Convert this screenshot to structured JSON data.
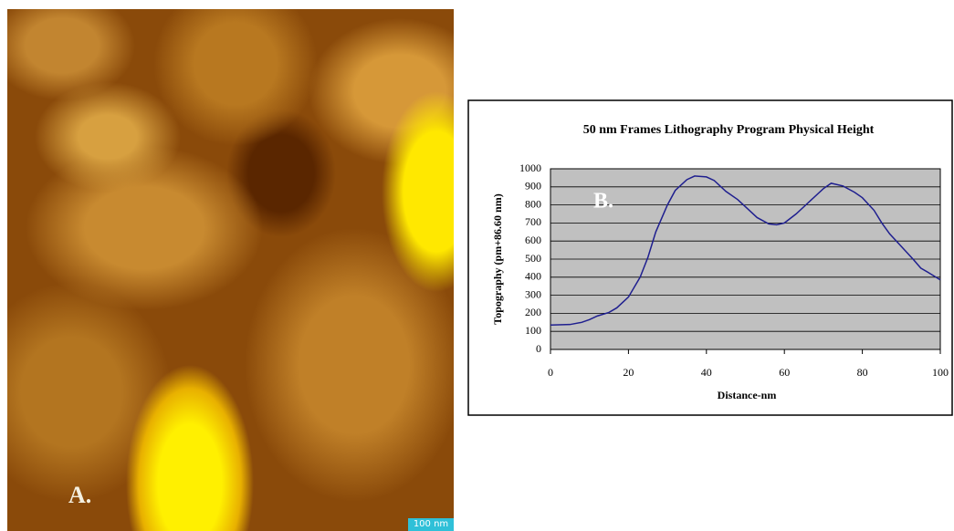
{
  "image": {
    "label": "A.",
    "scale_bar": "100 nm"
  },
  "chart_data": {
    "type": "line",
    "title": "50 nm Frames Lithography Program Physical Height",
    "x_label": "Distance-nm",
    "y_label": "Topography (pm+86.60 nm)",
    "annotations": [
      "B."
    ],
    "x": [
      0,
      5,
      8,
      10,
      12,
      15,
      17,
      20,
      23,
      25,
      27,
      30,
      32,
      35,
      37,
      40,
      42,
      45,
      48,
      50,
      53,
      56,
      58,
      60,
      63,
      66,
      70,
      72,
      75,
      78,
      80,
      83,
      85,
      87,
      90,
      93,
      95,
      97,
      100
    ],
    "series": [
      {
        "color": "#1f1f8f",
        "values": [
          135,
          138,
          150,
          165,
          185,
          205,
          230,
          290,
          400,
          510,
          650,
          800,
          880,
          940,
          960,
          955,
          935,
          875,
          830,
          790,
          730,
          695,
          690,
          700,
          750,
          810,
          890,
          920,
          905,
          870,
          840,
          770,
          700,
          640,
          570,
          500,
          450,
          425,
          385
        ]
      }
    ],
    "xlim": [
      0,
      100
    ],
    "xticks": [
      0,
      20,
      40,
      60,
      80,
      100
    ],
    "ylim": [
      0,
      1000
    ],
    "yticks": [
      0,
      100,
      200,
      300,
      400,
      500,
      600,
      700,
      800,
      900,
      1000
    ],
    "grid": true,
    "plot_background": "#c0c0c0"
  }
}
